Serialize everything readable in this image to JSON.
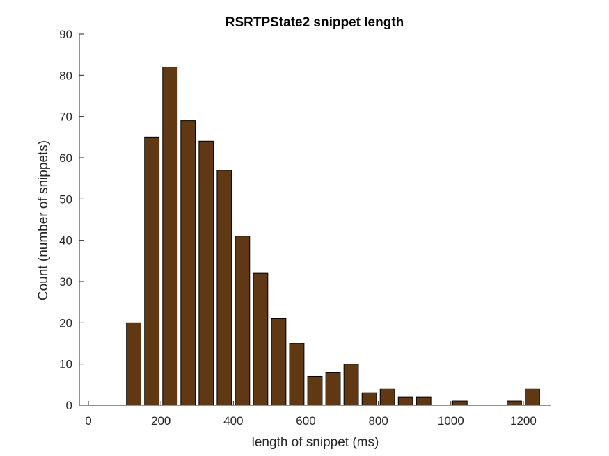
{
  "chart_data": {
    "type": "bar",
    "title": "RSRTPState2 snippet length",
    "xlabel": "length of snippet (ms)",
    "ylabel": "Count (number of snippets)",
    "x": [
      25,
      75,
      125,
      175,
      225,
      275,
      325,
      375,
      425,
      475,
      525,
      575,
      625,
      675,
      725,
      775,
      825,
      875,
      925,
      975,
      1025,
      1075,
      1125,
      1175,
      1225
    ],
    "values": [
      0,
      0,
      20,
      65,
      82,
      69,
      64,
      57,
      41,
      32,
      21,
      15,
      7,
      8,
      10,
      3,
      4,
      2,
      2,
      0,
      1,
      0,
      0,
      1,
      4
    ],
    "bin_width": 50,
    "xlim": [
      -25,
      1275
    ],
    "ylim": [
      0,
      90
    ],
    "xticks": [
      0,
      200,
      400,
      600,
      800,
      1000,
      1200
    ],
    "yticks": [
      0,
      10,
      20,
      30,
      40,
      50,
      60,
      70,
      80,
      90
    ],
    "bar_color": "#603813",
    "edge_color": "#000000",
    "grid": false,
    "legend": "none"
  }
}
